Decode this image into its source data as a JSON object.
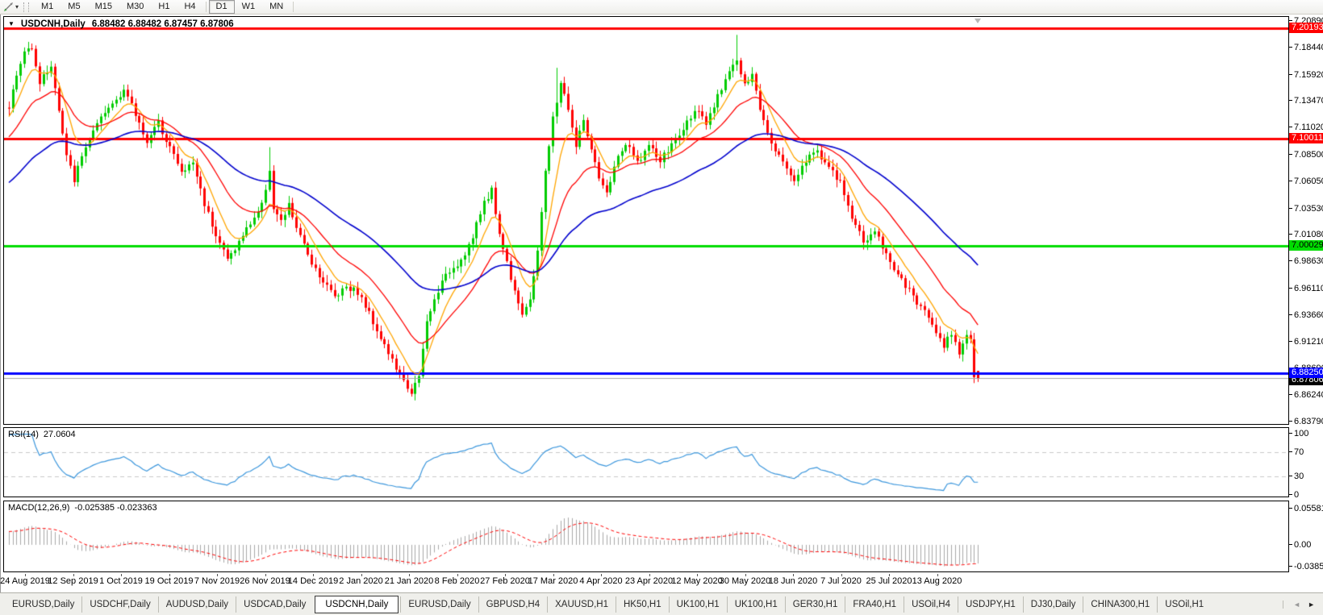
{
  "icons": {
    "title_triangle": "▼",
    "dropdown_caret": "▾",
    "tab_scroll_left": "◄",
    "tab_scroll_right": "►"
  },
  "toolbar": {
    "timeframes": [
      "M1",
      "M5",
      "M15",
      "M30",
      "H1",
      "H4",
      "D1",
      "W1",
      "MN"
    ],
    "active_timeframe": "D1",
    "separators_after": [
      "H4",
      "MN"
    ]
  },
  "chart": {
    "symbol_period": "USDCNH,Daily",
    "ohlc_text": "6.88482 6.88482 6.87457 6.87806"
  },
  "chart_data": {
    "type": "candlestick",
    "symbol": "USDCNH",
    "period": "Daily",
    "current_bar": {
      "open": 6.88482,
      "high": 6.88482,
      "low": 6.87457,
      "close": 6.87806
    },
    "price_axis_ticks": [
      "7.20890",
      "7.18440",
      "7.15920",
      "7.13470",
      "7.11020",
      "7.08500",
      "7.06050",
      "7.03530",
      "7.01080",
      "6.98630",
      "6.96110",
      "6.93660",
      "6.91210",
      "6.88690",
      "6.86240",
      "6.83790"
    ],
    "time_axis_labels": [
      "24 Aug 2019",
      "12 Sep 2019",
      "1 Oct 2019",
      "19 Oct 2019",
      "7 Nov 2019",
      "26 Nov 2019",
      "14 Dec 2019",
      "2 Jan 2020",
      "21 Jan 2020",
      "8 Feb 2020",
      "27 Feb 2020",
      "17 Mar 2020",
      "4 Apr 2020",
      "23 Apr 2020",
      "12 May 2020",
      "30 May 2020",
      "18 Jun 2020",
      "7 Jul 2020",
      "25 Jul 2020",
      "13 Aug 2020"
    ],
    "horizontal_lines": [
      {
        "price": 7.20193,
        "label": "7.20193",
        "color": "#FF0000",
        "text_color": "#FFFFFF"
      },
      {
        "price": 7.10011,
        "label": "7.10011",
        "color": "#FF0000",
        "text_color": "#FFFFFF"
      },
      {
        "price": 7.00029,
        "label": "7.00029",
        "color": "#00DD00",
        "text_color": "#000000"
      },
      {
        "price": 6.8825,
        "label": "6.88250",
        "color": "#0000FF",
        "text_color": "#FFFFFF"
      }
    ],
    "bid_price_line": {
      "price": 6.87806,
      "label": "6.87806",
      "line_color": "#A6A6A6",
      "badge_color": "#000000",
      "text_color": "#FFFFFF"
    },
    "candle_count": 254,
    "up_color": "#00CC00",
    "down_color": "#FF0000",
    "seed": 1337,
    "close_path_anchors": [
      [
        0,
        7.13
      ],
      [
        2,
        7.158
      ],
      [
        4,
        7.18
      ],
      [
        6,
        7.186
      ],
      [
        8,
        7.152
      ],
      [
        11,
        7.168
      ],
      [
        13,
        7.125
      ],
      [
        15,
        7.083
      ],
      [
        17,
        7.062
      ],
      [
        20,
        7.093
      ],
      [
        23,
        7.112
      ],
      [
        26,
        7.128
      ],
      [
        30,
        7.146
      ],
      [
        33,
        7.122
      ],
      [
        36,
        7.098
      ],
      [
        39,
        7.114
      ],
      [
        42,
        7.093
      ],
      [
        45,
        7.068
      ],
      [
        48,
        7.078
      ],
      [
        51,
        7.04
      ],
      [
        54,
        7.012
      ],
      [
        57,
        6.988
      ],
      [
        60,
        7.004
      ],
      [
        63,
        7.022
      ],
      [
        66,
        7.038
      ],
      [
        68,
        7.072
      ],
      [
        69,
        7.035
      ],
      [
        71,
        7.022
      ],
      [
        73,
        7.038
      ],
      [
        76,
        7.008
      ],
      [
        79,
        6.986
      ],
      [
        82,
        6.968
      ],
      [
        85,
        6.954
      ],
      [
        88,
        6.964
      ],
      [
        91,
        6.958
      ],
      [
        94,
        6.938
      ],
      [
        97,
        6.916
      ],
      [
        100,
        6.894
      ],
      [
        103,
        6.874
      ],
      [
        105,
        6.866
      ],
      [
        107,
        6.878
      ],
      [
        109,
        6.93
      ],
      [
        112,
        6.96
      ],
      [
        115,
        6.978
      ],
      [
        118,
        6.988
      ],
      [
        121,
        7.008
      ],
      [
        124,
        7.042
      ],
      [
        126,
        7.052
      ],
      [
        128,
        7.012
      ],
      [
        131,
        6.972
      ],
      [
        134,
        6.938
      ],
      [
        136,
        6.948
      ],
      [
        138,
        6.998
      ],
      [
        140,
        7.068
      ],
      [
        142,
        7.118
      ],
      [
        144,
        7.152
      ],
      [
        146,
        7.128
      ],
      [
        148,
        7.092
      ],
      [
        150,
        7.118
      ],
      [
        152,
        7.088
      ],
      [
        154,
        7.062
      ],
      [
        156,
        7.048
      ],
      [
        158,
        7.075
      ],
      [
        161,
        7.095
      ],
      [
        164,
        7.078
      ],
      [
        167,
        7.093
      ],
      [
        170,
        7.079
      ],
      [
        173,
        7.094
      ],
      [
        176,
        7.108
      ],
      [
        179,
        7.128
      ],
      [
        182,
        7.112
      ],
      [
        185,
        7.138
      ],
      [
        188,
        7.165
      ],
      [
        190,
        7.172
      ],
      [
        192,
        7.148
      ],
      [
        194,
        7.158
      ],
      [
        196,
        7.128
      ],
      [
        199,
        7.098
      ],
      [
        202,
        7.078
      ],
      [
        205,
        7.062
      ],
      [
        208,
        7.08
      ],
      [
        211,
        7.089
      ],
      [
        214,
        7.073
      ],
      [
        217,
        7.058
      ],
      [
        220,
        7.028
      ],
      [
        223,
        7.004
      ],
      [
        226,
        7.014
      ],
      [
        229,
        6.993
      ],
      [
        232,
        6.974
      ],
      [
        235,
        6.958
      ],
      [
        238,
        6.944
      ],
      [
        241,
        6.93
      ],
      [
        244,
        6.908
      ],
      [
        246,
        6.921
      ],
      [
        248,
        6.903
      ],
      [
        250,
        6.918
      ],
      [
        251,
        6.914
      ],
      [
        252,
        6.879
      ],
      [
        253,
        6.87806
      ]
    ],
    "wick_extremes": [
      {
        "index": 6,
        "high": 7.188
      },
      {
        "index": 68,
        "high": 7.092
      },
      {
        "index": 105,
        "low": 6.861
      },
      {
        "index": 143,
        "high": 7.1655
      },
      {
        "index": 190,
        "high": 7.196
      },
      {
        "index": 252,
        "low": 6.8735
      }
    ],
    "moving_averages": [
      {
        "period": 8,
        "color": "#FFA500"
      },
      {
        "period": 21,
        "color": "#FF0000"
      },
      {
        "period": 55,
        "color": "#0000CD"
      }
    ],
    "rsi": {
      "label": "RSI(14)",
      "value": "27.0604",
      "period": 14,
      "color": "#3B96DC",
      "levels": [
        30,
        70
      ],
      "axis_ticks": [
        "100",
        "70",
        "30",
        "0"
      ],
      "range": [
        0,
        100
      ],
      "level_line_color": "#C8C8C8"
    },
    "macd": {
      "label": "MACD(12,26,9)",
      "values_text": "-0.025385 -0.023363",
      "macd_value": -0.025385,
      "signal_value": -0.023363,
      "fast": 12,
      "slow": 26,
      "signal": 9,
      "axis_ticks": [
        "0.05581",
        "0.00",
        "-0.038524"
      ],
      "range": [
        -0.038524,
        0.05581
      ],
      "histogram_color": "#A9A9A9",
      "signal_color": "#FF0000"
    }
  },
  "tabs": {
    "items": [
      "EURUSD,Daily",
      "USDCHF,Daily",
      "AUDUSD,Daily",
      "USDCAD,Daily",
      "USDCNH,Daily",
      "EURUSD,Daily",
      "GBPUSD,H4",
      "XAUUSD,H1",
      "HK50,H1",
      "UK100,H1",
      "UK100,H1",
      "GER30,H1",
      "FRA40,H1",
      "USOil,H4",
      "USDJPY,H1",
      "DJ30,Daily",
      "CHINA300,H1",
      "USOil,H1"
    ],
    "active_index": 4
  }
}
